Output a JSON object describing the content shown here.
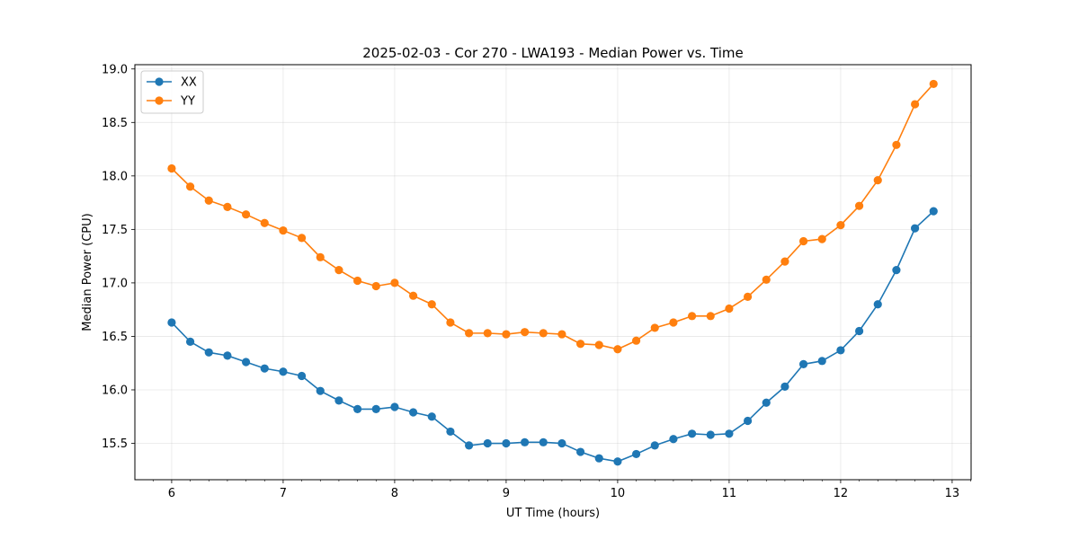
{
  "chart_data": {
    "type": "line",
    "title": "2025-02-03 - Cor 270 - LWA193 - Median Power vs. Time",
    "xlabel": "UT Time (hours)",
    "ylabel": "Median Power (CPU)",
    "xlim": [
      5.67,
      13.17
    ],
    "ylim": [
      15.16,
      19.04
    ],
    "xticks": [
      6,
      7,
      8,
      9,
      10,
      11,
      12,
      13
    ],
    "xtick_labels": [
      "6",
      "7",
      "8",
      "9",
      "10",
      "11",
      "12",
      "13"
    ],
    "yticks": [
      15.5,
      16.0,
      16.5,
      17.0,
      17.5,
      18.0,
      18.5,
      19.0
    ],
    "ytick_labels": [
      "15.5",
      "16.0",
      "16.5",
      "17.0",
      "17.5",
      "18.0",
      "18.5",
      "19.0"
    ],
    "grid": true,
    "legend_position": "top-left",
    "x": [
      6.0,
      6.1667,
      6.3333,
      6.5,
      6.6667,
      6.8333,
      7.0,
      7.1667,
      7.3333,
      7.5,
      7.6667,
      7.8333,
      8.0,
      8.1667,
      8.3333,
      8.5,
      8.6667,
      8.8333,
      9.0,
      9.1667,
      9.3333,
      9.5,
      9.6667,
      9.8333,
      10.0,
      10.1667,
      10.3333,
      10.5,
      10.6667,
      10.8333,
      11.0,
      11.1667,
      11.3333,
      11.5,
      11.6667,
      11.8333,
      12.0,
      12.1667,
      12.3333,
      12.5,
      12.6667,
      12.8333
    ],
    "series": [
      {
        "name": "XX",
        "color": "#1f77b4",
        "values": [
          16.63,
          16.45,
          16.35,
          16.32,
          16.26,
          16.2,
          16.17,
          16.13,
          15.99,
          15.9,
          15.82,
          15.82,
          15.84,
          15.79,
          15.75,
          15.61,
          15.48,
          15.5,
          15.5,
          15.51,
          15.51,
          15.5,
          15.42,
          15.36,
          15.33,
          15.4,
          15.48,
          15.54,
          15.59,
          15.58,
          15.59,
          15.71,
          15.88,
          16.03,
          16.24,
          16.27,
          16.37,
          16.55,
          16.8,
          17.12,
          17.51,
          17.67
        ]
      },
      {
        "name": "YY",
        "color": "#ff7f0e",
        "values": [
          18.07,
          17.9,
          17.77,
          17.71,
          17.64,
          17.56,
          17.49,
          17.42,
          17.24,
          17.12,
          17.02,
          16.97,
          17.0,
          16.88,
          16.8,
          16.63,
          16.53,
          16.53,
          16.52,
          16.54,
          16.53,
          16.52,
          16.43,
          16.42,
          16.38,
          16.46,
          16.58,
          16.63,
          16.69,
          16.69,
          16.76,
          16.87,
          17.03,
          17.2,
          17.39,
          17.41,
          17.54,
          17.72,
          17.96,
          18.29,
          18.67,
          18.86
        ]
      }
    ]
  }
}
